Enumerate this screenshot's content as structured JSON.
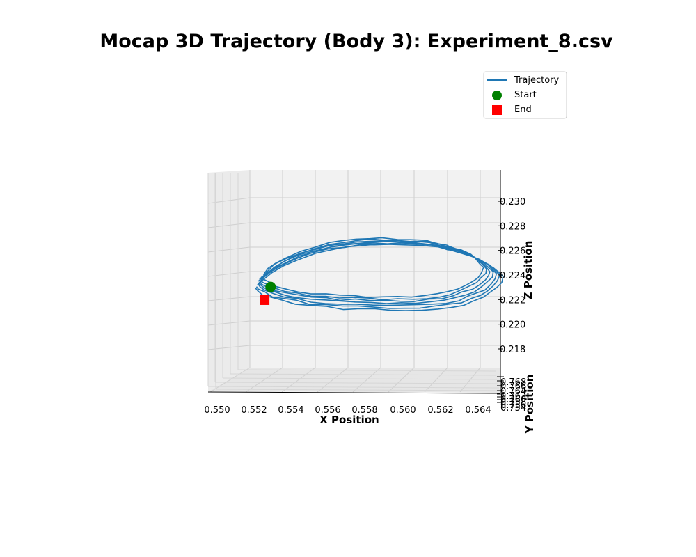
{
  "chart_data": {
    "type": "line",
    "projection": "3d",
    "title": "Mocap 3D Trajectory (Body 3): Experiment_8.csv",
    "xlabel": "X Position",
    "ylabel": "Y Position",
    "zlabel": "Z Position",
    "xlim": [
      0.5495,
      0.5653
    ],
    "zlim": [
      0.2166,
      0.232
    ],
    "x_ticks": [
      "0.550",
      "0.552",
      "0.554",
      "0.556",
      "0.558",
      "0.560",
      "0.562",
      "0.564"
    ],
    "z_ticks": [
      "0.218",
      "0.220",
      "0.222",
      "0.224",
      "0.226",
      "0.228",
      "0.230"
    ],
    "y_ticks": [
      "0.754",
      "0.756",
      "0.758",
      "0.760",
      "0.762",
      "0.764",
      "0.766",
      "0.768"
    ],
    "grid": true,
    "legend_position": "top-right",
    "legend": [
      {
        "label": "Trajectory",
        "marker": "line",
        "color": "#1f77b4"
      },
      {
        "label": "Start",
        "marker": "circle",
        "color": "#008000"
      },
      {
        "label": "End",
        "marker": "square",
        "color": "#ff0000"
      }
    ],
    "series": [
      {
        "name": "Trajectory",
        "color": "#1f77b4",
        "loops": 7,
        "x": [
          0.5523,
          0.5526,
          0.553,
          0.5536,
          0.5544,
          0.5552,
          0.556,
          0.5568,
          0.5575,
          0.5583,
          0.559,
          0.5598,
          0.5606,
          0.5614,
          0.562,
          0.5626,
          0.5632,
          0.5638,
          0.5642,
          0.5645,
          0.5647,
          0.5646,
          0.5644,
          0.5641,
          0.5637,
          0.5632,
          0.5627,
          0.5621,
          0.5614,
          0.5606,
          0.5598,
          0.559,
          0.5582,
          0.5574,
          0.5566,
          0.5558,
          0.555,
          0.5542,
          0.5536,
          0.553,
          0.5526,
          0.5523,
          0.5522
        ],
        "z": [
          0.2236,
          0.2241,
          0.2246,
          0.2251,
          0.2256,
          0.226,
          0.2263,
          0.2265,
          0.2266,
          0.2267,
          0.2267,
          0.2267,
          0.2266,
          0.2265,
          0.2263,
          0.2261,
          0.2258,
          0.2254,
          0.225,
          0.2246,
          0.2242,
          0.2238,
          0.2234,
          0.223,
          0.2227,
          0.2224,
          0.2221,
          0.2219,
          0.2218,
          0.2217,
          0.2217,
          0.2217,
          0.2217,
          0.2218,
          0.2218,
          0.2219,
          0.222,
          0.2222,
          0.2224,
          0.2226,
          0.2229,
          0.2232,
          0.2234
        ]
      }
    ],
    "start": {
      "x": 0.5524,
      "z": 0.2236
    },
    "end": {
      "x": 0.5523,
      "z": 0.2227
    }
  }
}
